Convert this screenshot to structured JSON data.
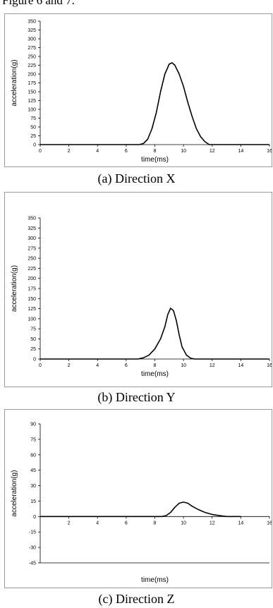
{
  "top_text": "Figure 6 and 7.",
  "captions": [
    "(a) Direction X",
    "(b) Direction Y",
    "(c) Direction Z"
  ],
  "chart_data": [
    {
      "type": "line",
      "xlabel": "time(ms)",
      "ylabel": "acceleration(g)",
      "xlim": [
        0,
        16
      ],
      "ylim": [
        0,
        350
      ],
      "xticks": [
        "0",
        "2",
        "4",
        "6",
        "8",
        "10",
        "12",
        "14",
        "16"
      ],
      "yticks": [
        "0",
        "25",
        "50",
        "75",
        "100",
        "125",
        "150",
        "175",
        "200",
        "225",
        "250",
        "275",
        "300",
        "325",
        "350"
      ],
      "x": [
        0,
        6.9,
        7.2,
        7.5,
        7.8,
        8.1,
        8.4,
        8.7,
        9.0,
        9.2,
        9.4,
        9.7,
        10.0,
        10.3,
        10.6,
        10.9,
        11.2,
        11.5,
        11.8,
        16
      ],
      "y": [
        0,
        0,
        3,
        15,
        45,
        90,
        150,
        200,
        228,
        232,
        225,
        200,
        165,
        120,
        80,
        45,
        22,
        8,
        0,
        0
      ]
    },
    {
      "type": "line",
      "xlabel": "time(ms)",
      "ylabel": "acceleration(g)",
      "xlim": [
        0,
        16
      ],
      "ylim": [
        0,
        350
      ],
      "xticks": [
        "0",
        "2",
        "4",
        "6",
        "8",
        "10",
        "12",
        "14",
        "16"
      ],
      "yticks": [
        "0",
        "25",
        "50",
        "75",
        "100",
        "125",
        "150",
        "175",
        "200",
        "225",
        "250",
        "275",
        "300",
        "325",
        "350"
      ],
      "x": [
        0,
        6.8,
        7.2,
        7.6,
        8.0,
        8.4,
        8.7,
        8.9,
        9.1,
        9.3,
        9.5,
        9.7,
        9.9,
        10.2,
        10.5,
        10.8,
        16
      ],
      "y": [
        0,
        0,
        3,
        10,
        25,
        50,
        80,
        110,
        126,
        120,
        95,
        60,
        30,
        10,
        2,
        0,
        0
      ]
    },
    {
      "type": "line",
      "xlabel": "time(ms)",
      "ylabel": "acceleration(g)",
      "xlim": [
        0,
        16
      ],
      "ylim": [
        -45,
        90
      ],
      "xticks": [
        "2",
        "4",
        "6",
        "8",
        "10",
        "12",
        "14",
        "16"
      ],
      "yticks": [
        "-45",
        "-30",
        "-15",
        "0",
        "15",
        "30",
        "45",
        "60",
        "75",
        "90"
      ],
      "x": [
        0,
        1.5,
        8.5,
        8.8,
        9.1,
        9.4,
        9.7,
        10.0,
        10.3,
        10.6,
        11.0,
        11.5,
        12.0,
        12.5,
        13.0,
        13.5,
        14.0
      ],
      "y": [
        0,
        0,
        0,
        1,
        4,
        9,
        13,
        14,
        13,
        10,
        7,
        4,
        2,
        1,
        0,
        0,
        0
      ]
    }
  ]
}
